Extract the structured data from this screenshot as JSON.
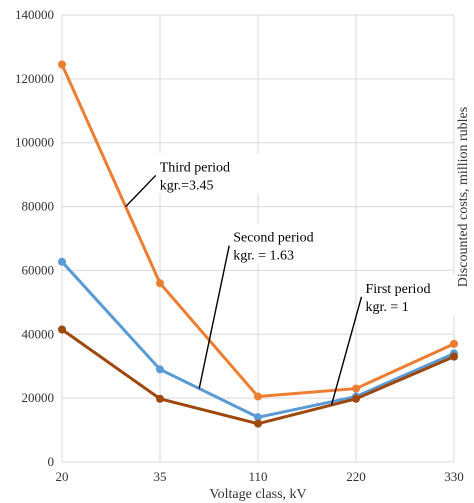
{
  "chart_data": {
    "type": "line",
    "categories": [
      "20",
      "35",
      "110",
      "220",
      "330"
    ],
    "xlabel": "Voltage class, kV",
    "ylabel": "Discounted costs, million rubles",
    "ylim": [
      0,
      140000
    ],
    "yticks": [
      0,
      20000,
      40000,
      60000,
      80000,
      100000,
      120000,
      140000
    ],
    "grid": true,
    "series": [
      {
        "key": "third",
        "values": [
          124500,
          56000,
          20500,
          23000,
          37000
        ],
        "color": "#ed7d31"
      },
      {
        "key": "second",
        "values": [
          62700,
          29000,
          14000,
          20500,
          34000
        ],
        "color": "#5b9bd5"
      },
      {
        "key": "first",
        "values": [
          41500,
          19800,
          12000,
          19800,
          33000
        ],
        "color": "#9e480e"
      }
    ],
    "annotations": [
      {
        "line1": "Third period",
        "line2": "kgr.=3.45",
        "series": "third",
        "x": 0.65,
        "y": 91000
      },
      {
        "line1": "Second period",
        "line2": "kgr. = 1.63",
        "series": "second",
        "x": 1.4,
        "y": 69000
      },
      {
        "line1": "First period",
        "line2": "kgr. = 1",
        "series": "first",
        "x": 2.75,
        "y": 53000
      }
    ]
  }
}
